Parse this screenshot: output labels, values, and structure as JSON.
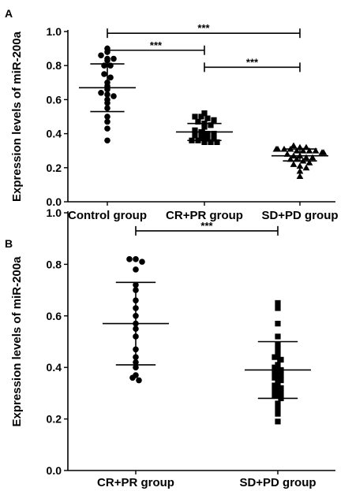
{
  "chart_data": [
    {
      "panel_label": "A",
      "type": "scatter",
      "ylabel": "Expression levels of miR-200a",
      "ylim": [
        0.0,
        1.0
      ],
      "yticks": [
        "0.0",
        "0.2",
        "0.4",
        "0.6",
        "0.8",
        "1.0"
      ],
      "categories": [
        "Control group",
        "CR+PR group",
        "SD+PD group"
      ],
      "series": [
        {
          "category": "Control group",
          "marker": "circle",
          "mean": 0.67,
          "sd_low": 0.53,
          "sd_high": 0.81,
          "values": [
            0.9,
            0.88,
            0.86,
            0.84,
            0.84,
            0.83,
            0.8,
            0.8,
            0.75,
            0.73,
            0.7,
            0.68,
            0.66,
            0.64,
            0.63,
            0.62,
            0.6,
            0.58,
            0.55,
            0.5,
            0.47,
            0.43,
            0.36
          ]
        },
        {
          "category": "CR+PR group",
          "marker": "square",
          "mean": 0.41,
          "sd_low": 0.36,
          "sd_high": 0.46,
          "values": [
            0.52,
            0.5,
            0.5,
            0.49,
            0.48,
            0.47,
            0.46,
            0.45,
            0.44,
            0.42,
            0.41,
            0.4,
            0.4,
            0.39,
            0.38,
            0.37,
            0.37,
            0.36,
            0.36,
            0.35,
            0.35,
            0.35
          ]
        },
        {
          "category": "SD+PD group",
          "marker": "triangle",
          "mean": 0.27,
          "sd_low": 0.24,
          "sd_high": 0.31,
          "values": [
            0.33,
            0.32,
            0.32,
            0.31,
            0.31,
            0.31,
            0.31,
            0.3,
            0.3,
            0.3,
            0.3,
            0.29,
            0.29,
            0.28,
            0.27,
            0.27,
            0.26,
            0.26,
            0.25,
            0.25,
            0.24,
            0.23,
            0.22,
            0.21,
            0.2,
            0.18,
            0.15
          ]
        }
      ],
      "comparisons": [
        {
          "from": 0,
          "to": 2,
          "y": 0.99,
          "label": "***"
        },
        {
          "from": 0,
          "to": 1,
          "y": 0.89,
          "label": "***"
        },
        {
          "from": 1,
          "to": 2,
          "y": 0.79,
          "label": "***"
        }
      ]
    },
    {
      "panel_label": "B",
      "type": "scatter",
      "ylabel": "Expression levels of miR-200a",
      "ylim": [
        0.0,
        1.0
      ],
      "yticks": [
        "0.0",
        "0.2",
        "0.4",
        "0.6",
        "0.8",
        "1.0"
      ],
      "categories": [
        "CR+PR group",
        "SD+PD group"
      ],
      "series": [
        {
          "category": "CR+PR group",
          "marker": "circle",
          "mean": 0.57,
          "sd_low": 0.41,
          "sd_high": 0.73,
          "values": [
            0.82,
            0.82,
            0.81,
            0.78,
            0.72,
            0.7,
            0.66,
            0.63,
            0.6,
            0.57,
            0.55,
            0.52,
            0.47,
            0.44,
            0.42,
            0.4,
            0.37,
            0.36,
            0.35
          ]
        },
        {
          "category": "SD+PD group",
          "marker": "square",
          "mean": 0.39,
          "sd_low": 0.28,
          "sd_high": 0.5,
          "values": [
            0.65,
            0.63,
            0.57,
            0.52,
            0.49,
            0.47,
            0.45,
            0.44,
            0.43,
            0.41,
            0.4,
            0.39,
            0.38,
            0.37,
            0.36,
            0.35,
            0.34,
            0.33,
            0.32,
            0.31,
            0.3,
            0.29,
            0.28,
            0.26,
            0.24,
            0.22,
            0.19
          ]
        }
      ],
      "comparisons": [
        {
          "from": 0,
          "to": 1,
          "y": 0.93,
          "label": "***"
        }
      ]
    }
  ]
}
